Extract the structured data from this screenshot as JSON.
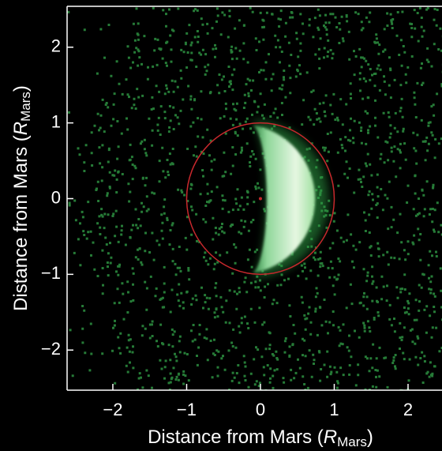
{
  "chart_data": {
    "type": "image",
    "xlabel": {
      "text": "Distance from Mars (",
      "symbol": "R",
      "subscript": "Mars",
      "close": ")"
    },
    "ylabel": {
      "text": "Distance from Mars (",
      "symbol": "R",
      "subscript": "Mars",
      "close": ")"
    },
    "xlim": [
      -2.62,
      2.46
    ],
    "ylim": [
      -2.53,
      2.54
    ],
    "xticks": [
      {
        "value": -2,
        "label": "−2"
      },
      {
        "value": -1,
        "label": "−1"
      },
      0,
      1,
      2
    ],
    "yticks": [
      {
        "value": -2,
        "label": "−2"
      },
      {
        "value": -1,
        "label": "−1"
      },
      0,
      1,
      2
    ],
    "mars_disk": {
      "center_x": 0,
      "center_y": 0,
      "radius": 1,
      "color": "#c8282d"
    }
  }
}
